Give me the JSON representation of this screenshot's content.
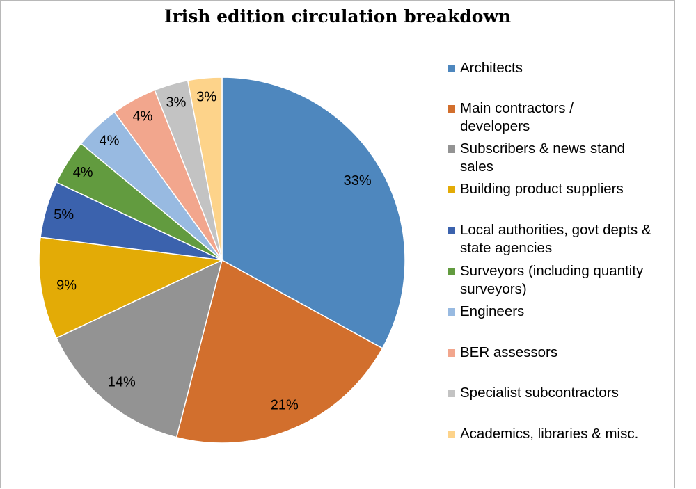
{
  "chart_data": {
    "type": "pie",
    "title": "Irish edition circulation breakdown",
    "legend_position": "right",
    "start_angle": "top, clockwise",
    "slices": [
      {
        "name": "Architects",
        "value": 33,
        "label": "33%",
        "color": "#4e87be"
      },
      {
        "name": "Main contractors / developers",
        "value": 21,
        "label": "21%",
        "color": "#d26f2d"
      },
      {
        "name": "Subscribers & news stand sales",
        "value": 14,
        "label": "14%",
        "color": "#939393"
      },
      {
        "name": "Building product suppliers",
        "value": 9,
        "label": "9%",
        "color": "#e3ab06"
      },
      {
        "name": "Local authorities, govt depts & state agencies",
        "value": 5,
        "label": "5%",
        "color": "#3b62ad"
      },
      {
        "name": "Surveyors (including quantity surveyors)",
        "value": 4,
        "label": "4%",
        "color": "#629b3f"
      },
      {
        "name": "Engineers",
        "value": 4,
        "label": "4%",
        "color": "#98bae1"
      },
      {
        "name": "BER assessors",
        "value": 4,
        "label": "4%",
        "color": "#f2a68d"
      },
      {
        "name": "Specialist subcontractors",
        "value": 3,
        "label": "3%",
        "color": "#c3c3c3"
      },
      {
        "name": "Academics, libraries & misc.",
        "value": 3,
        "label": "3%",
        "color": "#fdd38a"
      }
    ]
  }
}
